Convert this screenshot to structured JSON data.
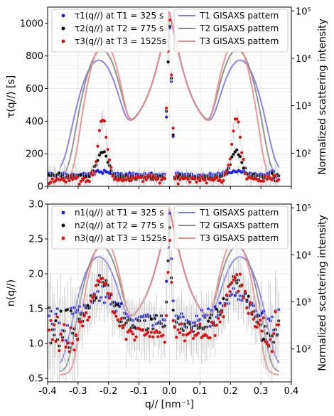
{
  "chart_data": [
    {
      "type": "scatter",
      "panel": "top",
      "ylabel": "τ(q//) [s]",
      "ylabel_right": "Normalized scattering intensity",
      "xlim": [
        -0.4,
        0.4
      ],
      "ylim": [
        0,
        1100
      ],
      "yticks": [
        0,
        200,
        400,
        600,
        800,
        1000
      ],
      "right_scale": "log",
      "right_ylim": [
        20,
        120000
      ],
      "right_ticks": [
        {
          "v": 100,
          "label": "10²"
        },
        {
          "v": 1000,
          "label": "10³"
        },
        {
          "v": 10000,
          "label": "10⁴"
        },
        {
          "v": 100000,
          "label": "10⁵"
        }
      ],
      "grid": true,
      "legend_left": "top-left",
      "legend_right": "top-right",
      "scatter_series": [
        {
          "name": "τ1(q//) at T1 = 325 s",
          "color": "#1f1fe0",
          "peak": 90,
          "peakwidth": 0.045,
          "base": 70,
          "center": 130,
          "noise": 18
        },
        {
          "name": "τ2(q//) at T2 = 775 s",
          "color": "#111111",
          "peak": 220,
          "peakwidth": 0.025,
          "base": 55,
          "center": 150,
          "noise": 22
        },
        {
          "name": "τ3(q//) at T3 = 1525s",
          "color": "#e01010",
          "peak": 420,
          "peakwidth": 0.02,
          "base": 45,
          "center": 170,
          "noise": 35
        }
      ],
      "line_series": [
        {
          "name": "T1 GISAXS pattern",
          "color": "#7a7ae8",
          "peakpos": 0.232,
          "peakwidth": 0.048,
          "peak": 9000,
          "floor": 40
        },
        {
          "name": "T2 GISAXS pattern",
          "color": "#8a8a8a",
          "peakpos": 0.222,
          "peakwidth": 0.043,
          "peak": 15000,
          "floor": 30
        },
        {
          "name": "T3 GISAXS pattern",
          "color": "#f08a8a",
          "peakpos": 0.215,
          "peakwidth": 0.038,
          "peak": 21000,
          "floor": 25
        }
      ]
    },
    {
      "type": "scatter",
      "panel": "bottom",
      "xlabel": "q// [nm⁻¹]",
      "ylabel": "n(q//)",
      "ylabel_right": "Normalized scattering intensity",
      "xlim": [
        -0.4,
        0.4
      ],
      "xticks": [
        -0.4,
        -0.3,
        -0.2,
        -0.1,
        0.0,
        0.1,
        0.2,
        0.3,
        0.4
      ],
      "ylim": [
        0.45,
        3.0
      ],
      "yticks": [
        0.5,
        1.0,
        1.5,
        2.0,
        2.5,
        3.0
      ],
      "right_scale": "log",
      "right_ylim": [
        20,
        120000
      ],
      "right_ticks": [
        {
          "v": 100,
          "label": "10²"
        },
        {
          "v": 1000,
          "label": "10³"
        },
        {
          "v": 10000,
          "label": "10⁴"
        },
        {
          "v": 100000,
          "label": "10⁵"
        }
      ],
      "grid": true,
      "legend_left": "top-left",
      "legend_right": "top-right",
      "scatter_series": [
        {
          "name": "n1(q//) at T1 = 325 s",
          "color": "#1f1fe0",
          "peak": 1.7,
          "peakwidth": 0.06,
          "base": 1.35,
          "center": 1.3,
          "noise": 0.18
        },
        {
          "name": "n2(q//) at T2 = 775 s",
          "color": "#111111",
          "peak": 1.85,
          "peakwidth": 0.05,
          "base": 1.25,
          "center": 1.1,
          "noise": 0.2
        },
        {
          "name": "n3(q//) at T3 = 1525s",
          "color": "#e01010",
          "peak": 1.95,
          "peakwidth": 0.045,
          "base": 1.15,
          "center": 1.0,
          "noise": 0.22
        }
      ],
      "line_series": [
        {
          "name": "T1 GISAXS pattern",
          "color": "#7a7ae8",
          "peakpos": 0.232,
          "peakwidth": 0.048,
          "peak": 9000,
          "floor": 40
        },
        {
          "name": "T2 GISAXS pattern",
          "color": "#8a8a8a",
          "peakpos": 0.222,
          "peakwidth": 0.043,
          "peak": 15000,
          "floor": 30
        },
        {
          "name": "T3 GISAXS pattern",
          "color": "#f08a8a",
          "peakpos": 0.215,
          "peakwidth": 0.038,
          "peak": 21000,
          "floor": 25
        }
      ]
    }
  ]
}
